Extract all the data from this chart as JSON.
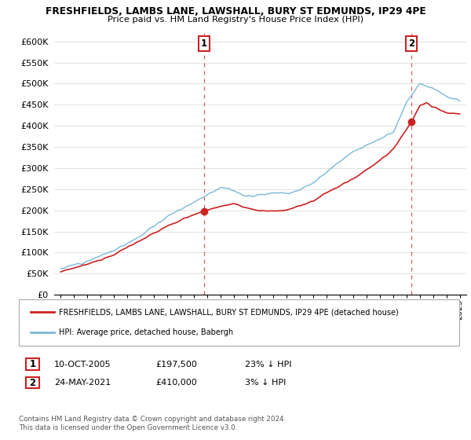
{
  "title_line1": "FRESHFIELDS, LAMBS LANE, LAWSHALL, BURY ST EDMUNDS, IP29 4PE",
  "title_line2": "Price paid vs. HM Land Registry's House Price Index (HPI)",
  "ylabel_ticks": [
    "£0",
    "£50K",
    "£100K",
    "£150K",
    "£200K",
    "£250K",
    "£300K",
    "£350K",
    "£400K",
    "£450K",
    "£500K",
    "£550K",
    "£600K"
  ],
  "ytick_values": [
    0,
    50000,
    100000,
    150000,
    200000,
    250000,
    300000,
    350000,
    400000,
    450000,
    500000,
    550000,
    600000
  ],
  "ylim": [
    0,
    620000
  ],
  "xlim_start": 1994.5,
  "xlim_end": 2025.5,
  "hpi_color": "#7ab8d9",
  "price_color": "#cc2222",
  "dashed_line_color": "#cc4444",
  "marker1_x": 2005.78,
  "marker1_y": 197500,
  "marker2_x": 2021.39,
  "marker2_y": 410000,
  "legend_property_label": "FRESHFIELDS, LAMBS LANE, LAWSHALL, BURY ST EDMUNDS, IP29 4PE (detached house)",
  "legend_hpi_label": "HPI: Average price, detached house, Babergh",
  "note1_num": "1",
  "note1_date": "10-OCT-2005",
  "note1_price": "£197,500",
  "note1_hpi": "23% ↓ HPI",
  "note2_num": "2",
  "note2_date": "24-MAY-2021",
  "note2_price": "£410,000",
  "note2_hpi": "3% ↓ HPI",
  "footnote": "Contains HM Land Registry data © Crown copyright and database right 2024.\nThis data is licensed under the Open Government Licence v3.0.",
  "xtick_years": [
    1995,
    1996,
    1997,
    1998,
    1999,
    2000,
    2001,
    2002,
    2003,
    2004,
    2005,
    2006,
    2007,
    2008,
    2009,
    2010,
    2011,
    2012,
    2013,
    2014,
    2015,
    2016,
    2017,
    2018,
    2019,
    2020,
    2021,
    2022,
    2023,
    2024,
    2025
  ]
}
